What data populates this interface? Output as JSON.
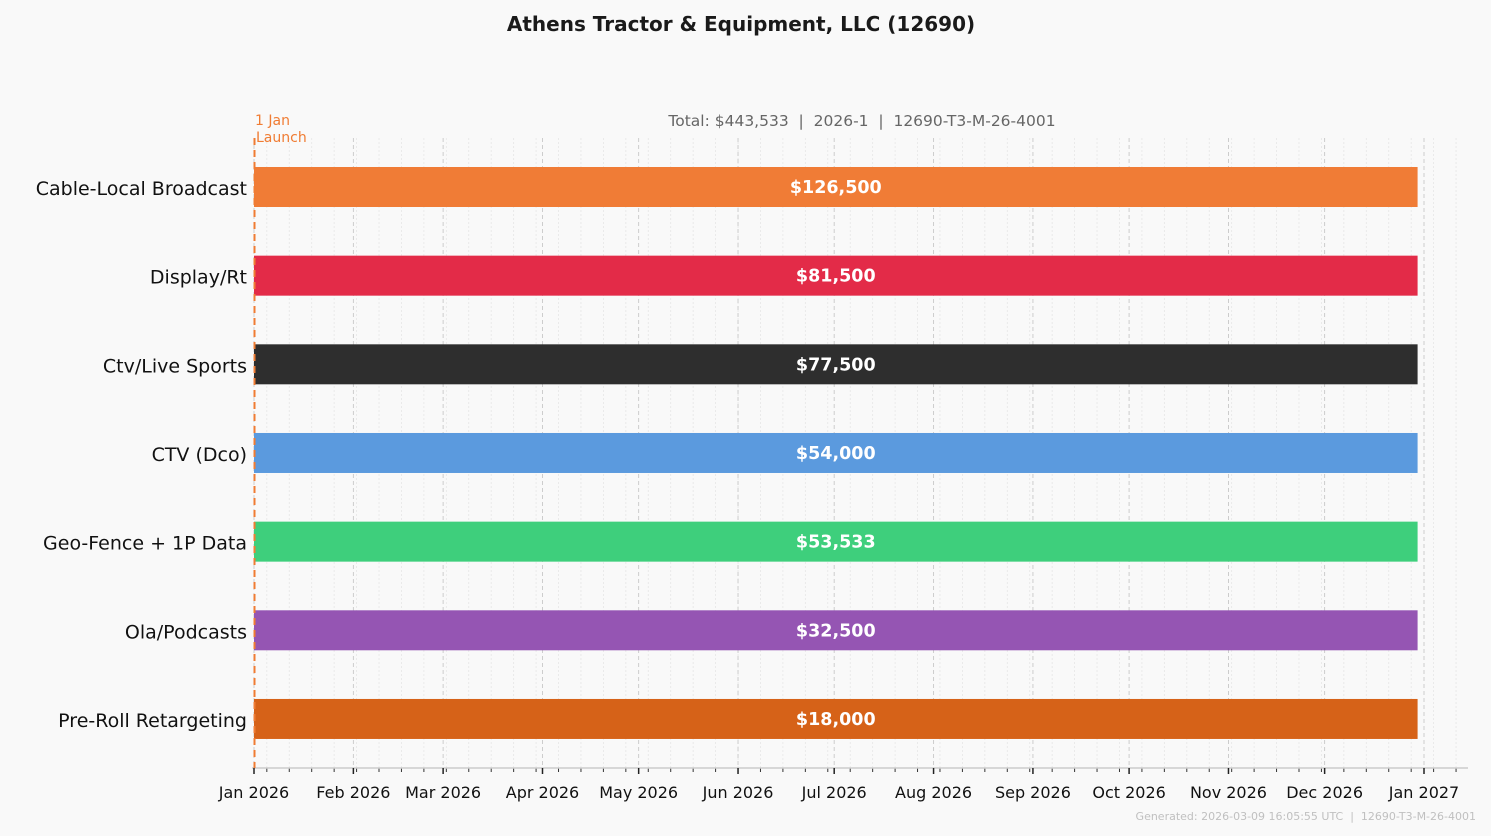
{
  "chart_data": {
    "type": "gantt-bar",
    "title": "Athens Tractor & Equipment, LLC (12690)",
    "subtitle": "Total: $443,533  |  2026-1  |  12690-T3-M-26-4001",
    "marker": {
      "date": "2026-01-01",
      "label_line1": "1 Jan",
      "label_line2": "Launch",
      "color": "#f07c33"
    },
    "x_range": [
      "2025-12-31",
      "2027-01-14"
    ],
    "x_ticks": [
      {
        "date": "2026-01-01",
        "label": "Jan 2026"
      },
      {
        "date": "2026-02-01",
        "label": "Feb 2026"
      },
      {
        "date": "2026-03-01",
        "label": "Mar 2026"
      },
      {
        "date": "2026-04-01",
        "label": "Apr 2026"
      },
      {
        "date": "2026-05-01",
        "label": "May 2026"
      },
      {
        "date": "2026-06-01",
        "label": "Jun 2026"
      },
      {
        "date": "2026-07-01",
        "label": "Jul 2026"
      },
      {
        "date": "2026-08-01",
        "label": "Aug 2026"
      },
      {
        "date": "2026-09-01",
        "label": "Sep 2026"
      },
      {
        "date": "2026-10-01",
        "label": "Oct 2026"
      },
      {
        "date": "2026-11-01",
        "label": "Nov 2026"
      },
      {
        "date": "2026-12-01",
        "label": "Dec 2026"
      },
      {
        "date": "2027-01-01",
        "label": "Jan 2027"
      }
    ],
    "grid": true,
    "series": [
      {
        "name": "Cable-Local Broadcast",
        "start": "2026-01-01",
        "end": "2026-12-30",
        "value": 126500,
        "label": "$126,500",
        "color": "#f07c36"
      },
      {
        "name": "Display/Rt",
        "start": "2026-01-01",
        "end": "2026-12-30",
        "value": 81500,
        "label": "$81,500",
        "color": "#e32b48"
      },
      {
        "name": "Ctv/Live Sports",
        "start": "2026-01-01",
        "end": "2026-12-30",
        "value": 77500,
        "label": "$77,500",
        "color": "#2e2e2e"
      },
      {
        "name": "CTV (Dco)",
        "start": "2026-01-01",
        "end": "2026-12-30",
        "value": 54000,
        "label": "$54,000",
        "color": "#5b9ade"
      },
      {
        "name": "Geo-Fence + 1P Data",
        "start": "2026-01-01",
        "end": "2026-12-30",
        "value": 53533,
        "label": "$53,533",
        "color": "#3ecf7c"
      },
      {
        "name": "Ola/Podcasts",
        "start": "2026-01-01",
        "end": "2026-12-30",
        "value": 32500,
        "label": "$32,500",
        "color": "#9555b3"
      },
      {
        "name": "Pre-Roll Retargeting",
        "start": "2026-01-01",
        "end": "2026-12-30",
        "value": 18000,
        "label": "$18,000",
        "color": "#d66218"
      }
    ],
    "footer": "Generated: 2026-03-09 16:05:55 UTC  |  12690-T3-M-26-4001"
  }
}
